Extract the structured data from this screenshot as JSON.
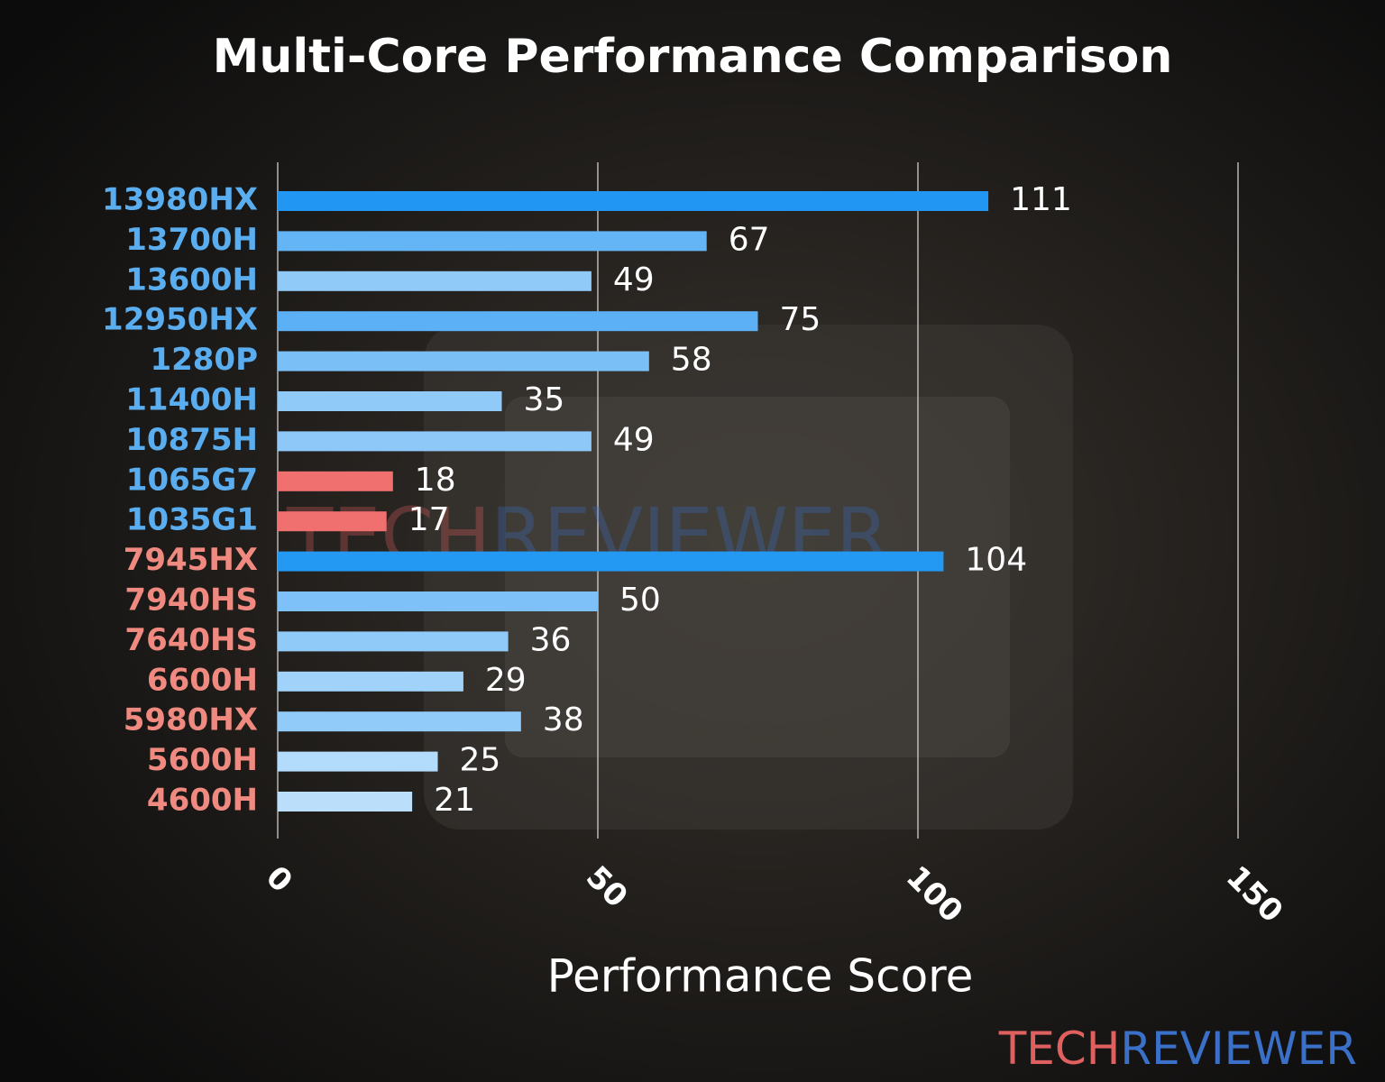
{
  "chart_data": {
    "type": "hbar",
    "title": "Multi-Core Performance Comparison",
    "x_label": "Performance Score",
    "categories": [
      "13980HX",
      "13700H",
      "13600H",
      "12950HX",
      "1280P",
      "11400H",
      "10875H",
      "1065G7",
      "1035G1",
      "7945HX",
      "7940HS",
      "7640HS",
      "6600H",
      "5980HX",
      "5600H",
      "4600H"
    ],
    "category_colors": [
      "#5aaef0",
      "#5aaef0",
      "#5aaef0",
      "#5aaef0",
      "#5aaef0",
      "#5aaef0",
      "#5aaef0",
      "#5aaef0",
      "#5aaef0",
      "#f08a80",
      "#f08a80",
      "#f08a80",
      "#f08a80",
      "#f08a80",
      "#f08a80",
      "#f08a80"
    ],
    "values": [
      111,
      67,
      49,
      75,
      58,
      35,
      49,
      18,
      17,
      104,
      50,
      36,
      29,
      38,
      25,
      21
    ],
    "colors": [
      "#2196f3",
      "#64b5f6",
      "#90caf9",
      "#5cb0f5",
      "#7bbff7",
      "#90caf9",
      "#8ec8f9",
      "#f07070",
      "#f07070",
      "#2499f3",
      "#7ec0f8",
      "#90caf9",
      "#a0d2fa",
      "#90cbf9",
      "#b3dcfc",
      "#bbdefb"
    ],
    "xlim": [
      0,
      150
    ],
    "xticks": [
      0,
      50,
      100,
      150
    ],
    "grid": true,
    "brand": [
      "TECH",
      "REVIEWER"
    ],
    "brand_colors": [
      "#e06060",
      "#3a70c8"
    ]
  }
}
